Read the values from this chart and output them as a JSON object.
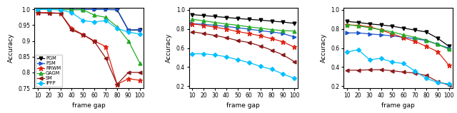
{
  "x": [
    10,
    20,
    30,
    40,
    50,
    60,
    70,
    80,
    90,
    100
  ],
  "subplot_a": {
    "PGM": [
      1.0,
      1.0,
      1.0,
      1.0,
      1.0,
      1.0,
      1.0,
      0.999,
      0.934,
      0.935
    ],
    "PSM": [
      1.0,
      1.0,
      1.0,
      1.0,
      1.0,
      1.0,
      1.0,
      1.0,
      0.935,
      0.936
    ],
    "RRWM": [
      0.99,
      0.99,
      0.988,
      0.94,
      0.92,
      0.9,
      0.882,
      0.762,
      0.78,
      0.775
    ],
    "GAGM": [
      1.0,
      1.0,
      1.0,
      0.999,
      0.999,
      0.982,
      0.975,
      0.945,
      0.9,
      0.83
    ],
    "SM": [
      0.99,
      0.988,
      0.988,
      0.935,
      0.92,
      0.898,
      0.846,
      0.762,
      0.8,
      0.8
    ],
    "IPFP": [
      1.0,
      1.0,
      0.999,
      0.99,
      0.965,
      0.96,
      0.965,
      0.94,
      0.928,
      0.922
    ]
  },
  "subplot_b": {
    "PGM": [
      0.95,
      0.94,
      0.93,
      0.92,
      0.91,
      0.9,
      0.892,
      0.882,
      0.872,
      0.858
    ],
    "PSM": [
      0.855,
      0.848,
      0.838,
      0.825,
      0.812,
      0.798,
      0.782,
      0.768,
      0.752,
      0.715
    ],
    "RRWM": [
      0.852,
      0.838,
      0.818,
      0.798,
      0.772,
      0.752,
      0.728,
      0.698,
      0.665,
      0.608
    ],
    "GAGM": [
      0.9,
      0.885,
      0.868,
      0.852,
      0.838,
      0.822,
      0.808,
      0.793,
      0.782,
      0.778
    ],
    "SM": [
      0.77,
      0.752,
      0.732,
      0.708,
      0.678,
      0.658,
      0.622,
      0.578,
      0.528,
      0.458
    ],
    "IPFP": [
      0.54,
      0.54,
      0.528,
      0.508,
      0.478,
      0.448,
      0.408,
      0.378,
      0.328,
      0.282
    ]
  },
  "subplot_c": {
    "PGM": [
      0.878,
      0.868,
      0.852,
      0.842,
      0.828,
      0.808,
      0.788,
      0.768,
      0.702,
      0.618
    ],
    "PSM": [
      0.758,
      0.758,
      0.748,
      0.738,
      0.728,
      0.712,
      0.698,
      0.678,
      0.638,
      0.598
    ],
    "RRWM": [
      0.842,
      0.838,
      0.822,
      0.788,
      0.748,
      0.708,
      0.668,
      0.618,
      0.562,
      0.418
    ],
    "GAGM": [
      0.843,
      0.832,
      0.812,
      0.792,
      0.768,
      0.738,
      0.712,
      0.682,
      0.638,
      0.588
    ],
    "SM": [
      0.368,
      0.368,
      0.372,
      0.373,
      0.362,
      0.348,
      0.338,
      0.312,
      0.248,
      0.212
    ],
    "IPFP": [
      0.558,
      0.582,
      0.478,
      0.492,
      0.452,
      0.438,
      0.358,
      0.282,
      0.238,
      0.225
    ]
  },
  "ylim_a": [
    0.75,
    1.005
  ],
  "ylim_b": [
    0.18,
    1.02
  ],
  "ylim_c": [
    0.18,
    1.02
  ],
  "yticks_a": [
    0.75,
    0.8,
    0.85,
    0.9,
    0.95,
    1.0
  ],
  "yticks_bc": [
    0.2,
    0.4,
    0.6,
    0.8,
    1.0
  ],
  "colors": {
    "PGM": "#000000",
    "PSM": "#1955cc",
    "RRWM": "#dd2211",
    "GAGM": "#22aa22",
    "SM": "#8B1a1a",
    "IPFP": "#00bfff"
  },
  "markers": {
    "PGM": "v",
    "PSM": ">",
    "RRWM": "*",
    "GAGM": "^",
    "SM": "<",
    "IPFP": "D"
  },
  "legend_order": [
    "PGM",
    "PSM",
    "RRWM",
    "GAGM",
    "SM",
    "IPFP"
  ]
}
